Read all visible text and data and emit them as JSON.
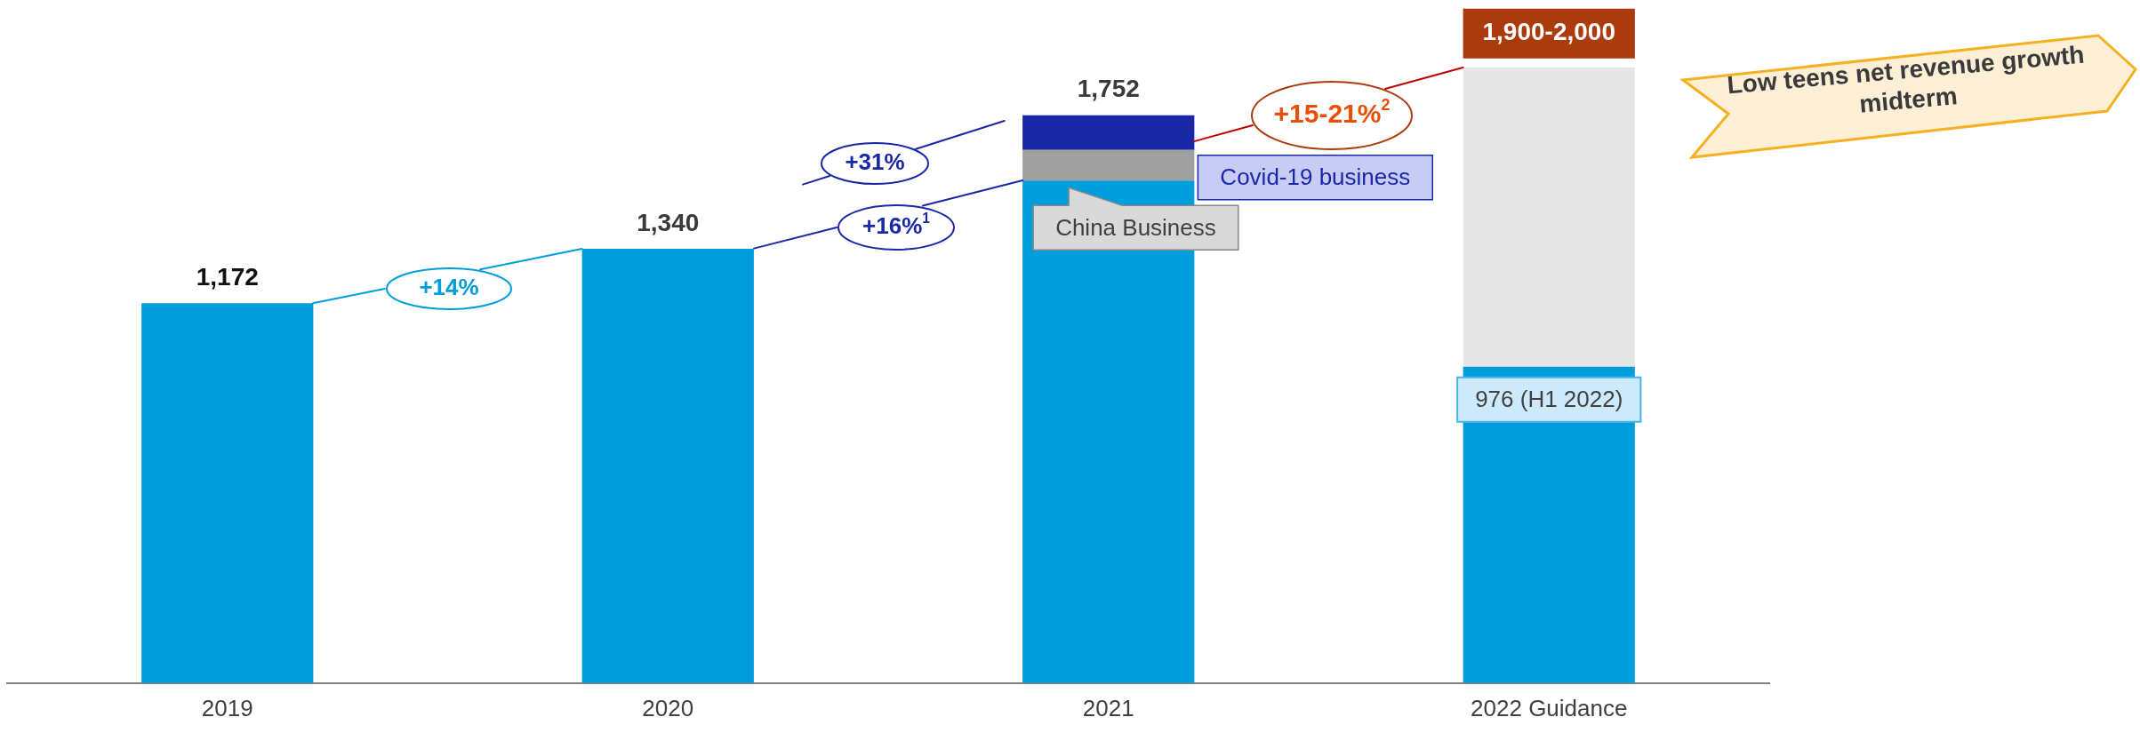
{
  "chart_data": {
    "type": "bar",
    "stacked": true,
    "categories": [
      "2019",
      "2020",
      "2021",
      "2022 Guidance"
    ],
    "series": [
      {
        "color": "#009ddc",
        "values": [
          1172,
          1340,
          1550,
          976
        ],
        "value_labels": [
          "1,172",
          "1,340",
          null,
          "976 (H1 2022)"
        ]
      },
      {
        "name": "China Business",
        "color": "#a0a0a0",
        "values": [
          null,
          null,
          95,
          null
        ]
      },
      {
        "name": "Covid-19 business",
        "color": "#1a28a8",
        "values": [
          null,
          null,
          107,
          null
        ]
      },
      {
        "color": "#e6e6e6",
        "values": [
          null,
          null,
          null,
          924
        ]
      }
    ],
    "totals": [
      null,
      null,
      "1,752",
      "1,900-2,000"
    ],
    "annotations": [
      "+14%",
      "+16%$^{1}$",
      "+31%",
      "+15-21%$^{2}$",
      "Low teens net revenue growth midterm"
    ],
    "ylim": [
      0,
      2080
    ],
    "tick_labels": "x",
    "grid": false,
    "legend": false
  }
}
